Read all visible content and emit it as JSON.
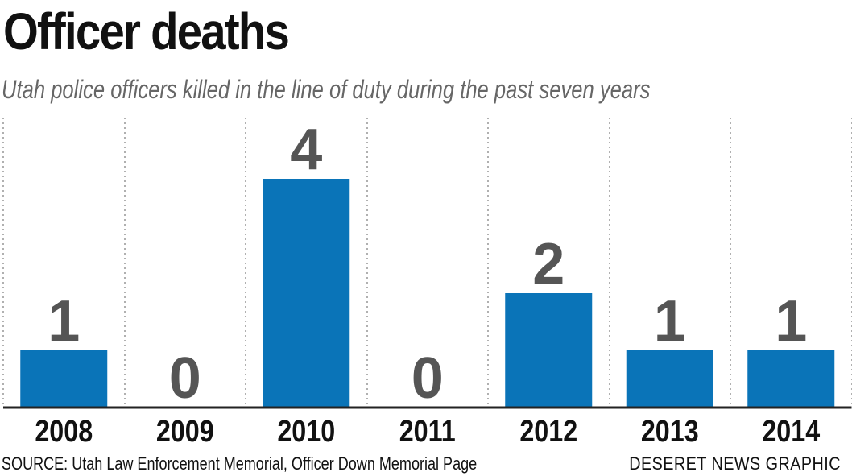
{
  "title": "Officer deaths",
  "subtitle": "Utah police officers killed in the line of duty during the past seven years",
  "source": "SOURCE: Utah Law Enforcement Memorial, Officer Down Memorial Page",
  "credit": "DESERET NEWS GRAPHIC",
  "colors": {
    "bar": "#0a74b8",
    "value_label": "#555555",
    "baseline": "#222222",
    "grid": "#b0b0b0"
  },
  "chart_data": {
    "type": "bar",
    "categories": [
      "2008",
      "2009",
      "2010",
      "2011",
      "2012",
      "2013",
      "2014"
    ],
    "values": [
      1,
      0,
      4,
      0,
      2,
      1,
      1
    ],
    "title": "Officer deaths",
    "subtitle": "Utah police officers killed in the line of duty during the past seven years",
    "xlabel": "",
    "ylabel": "",
    "ylim": [
      0,
      4
    ],
    "grid": true,
    "data_labels": true
  }
}
